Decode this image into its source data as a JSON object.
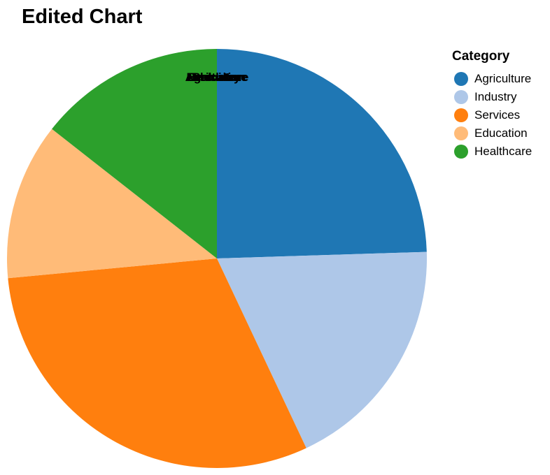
{
  "title": "Edited Chart",
  "chart_data": {
    "type": "pie",
    "title": "Edited Chart",
    "legend_title": "Category",
    "legend_position": "right",
    "categories": [
      "Agriculture",
      "Industry",
      "Services",
      "Education",
      "Healthcare"
    ],
    "values": [
      24.5,
      18.5,
      30.5,
      12.1,
      14.4
    ],
    "colors": [
      "#1f77b4",
      "#aec7e8",
      "#ff7f0e",
      "#ffbb78",
      "#2ca02c"
    ]
  }
}
